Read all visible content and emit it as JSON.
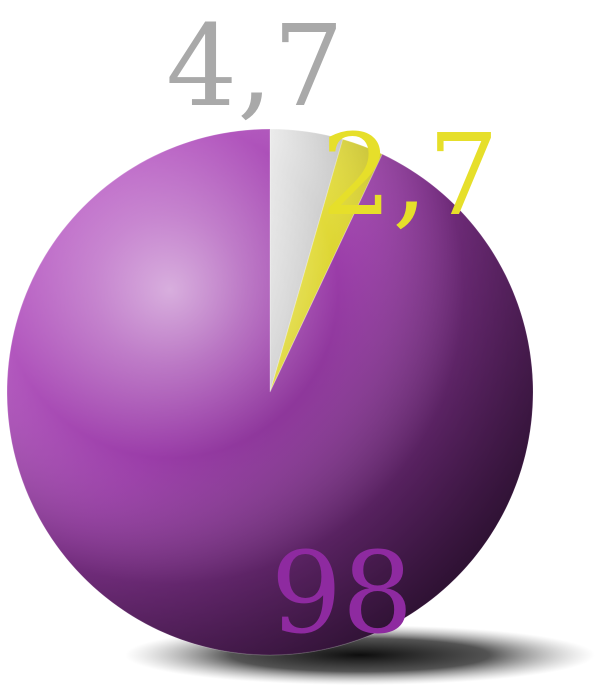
{
  "chart_data": {
    "type": "pie",
    "slices": [
      {
        "label": "4,7",
        "value": 4.7,
        "color": "#c8c8c8"
      },
      {
        "label": "2,7",
        "value": 2.7,
        "color": "#e6df2a"
      },
      {
        "label": "98",
        "value": 98,
        "color": "#8b3fa0"
      }
    ],
    "start_angle_deg": 0,
    "direction": "clockwise",
    "style": "3d-glossy",
    "legend": "none",
    "data_labels": "outside-colored"
  }
}
